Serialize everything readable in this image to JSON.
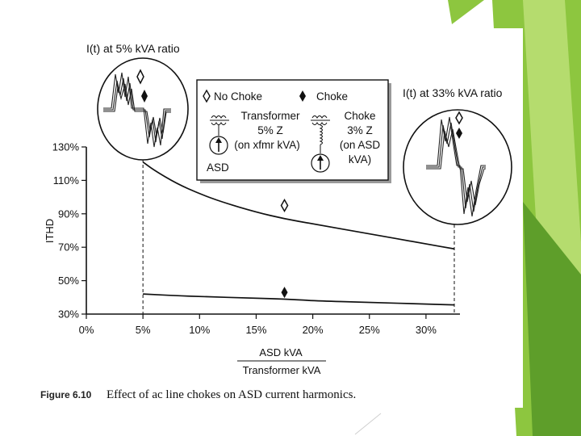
{
  "colors": {
    "accent_green": "#8dc63f",
    "accent_green_light": "#b5dc6e",
    "accent_green_dark": "#5e9e2a",
    "ink": "#111111"
  },
  "figure": {
    "label": "Figure 6.10",
    "caption": "Effect of ac line chokes on ASD current harmonics."
  },
  "inset_left": {
    "title": "I(t) at 5% kVA ratio"
  },
  "inset_right": {
    "title": "I(t) at 33% kVA ratio"
  },
  "legend": {
    "no_choke": "No Choke",
    "choke": "Choke",
    "transformer_block": [
      "Transformer",
      "5% Z",
      "(on xfmr kVA)"
    ],
    "choke_block": [
      "Choke",
      "3% Z",
      "(on ASD",
      "kVA)"
    ],
    "asd_label": "ASD"
  },
  "chart_data": {
    "type": "line",
    "ylabel": "ITHD",
    "xlabel_numerator": "ASD kVA",
    "xlabel_denominator": "Transformer kVA",
    "xlim": [
      0,
      33
    ],
    "ylim": [
      30,
      130
    ],
    "x_ticks": [
      "0%",
      "5%",
      "10%",
      "15%",
      "20%",
      "25%",
      "30%"
    ],
    "x_tick_values": [
      0,
      5,
      10,
      15,
      20,
      25,
      30
    ],
    "y_ticks": [
      "30%",
      "50%",
      "70%",
      "90%",
      "110%",
      "130%"
    ],
    "y_tick_values": [
      30,
      50,
      70,
      90,
      110,
      130
    ],
    "reference_x": [
      5,
      32.5
    ],
    "series": [
      {
        "name": "No Choke",
        "marker": "open-diamond",
        "x": [
          5,
          6,
          8,
          10,
          12,
          15,
          17.5,
          20,
          25,
          30,
          32.5
        ],
        "y": [
          121,
          116,
          108,
          102,
          97,
          91,
          87,
          84,
          78,
          72,
          69
        ],
        "marker_at": [
          17.5,
          95
        ]
      },
      {
        "name": "Choke",
        "marker": "filled-diamond",
        "x": [
          5,
          8,
          10,
          15,
          17.5,
          20,
          25,
          30,
          32.5
        ],
        "y": [
          42,
          41,
          40.5,
          39.5,
          39,
          38,
          37,
          36,
          35.5
        ],
        "marker_at": [
          17.5,
          43
        ]
      }
    ]
  }
}
